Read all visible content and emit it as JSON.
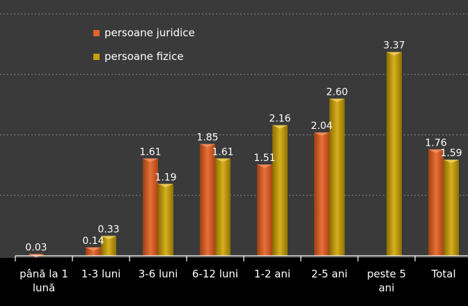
{
  "chart_data": {
    "type": "bar",
    "categories": [
      "până la 1 lună",
      "1-3 luni",
      "3-6 luni",
      "6-12 luni",
      "1-2 ani",
      "2-5 ani",
      "peste 5 ani",
      "Total"
    ],
    "tick_lines": [
      [
        "până la 1",
        "lună"
      ],
      [
        "1-3 luni"
      ],
      [
        "3-6 luni"
      ],
      [
        "6-12 luni"
      ],
      [
        "1-2 ani"
      ],
      [
        "2-5 ani"
      ],
      [
        "peste 5",
        "ani"
      ],
      [
        "Total"
      ]
    ],
    "series": [
      {
        "name": "persoane juridice",
        "color": "#e0662a",
        "values": [
          0.03,
          0.14,
          1.61,
          1.85,
          1.51,
          2.04,
          null,
          1.76
        ],
        "labels": [
          "0.03",
          "0.14",
          "1.61",
          "1.85",
          "1.51",
          "2.04",
          "",
          "1.76"
        ]
      },
      {
        "name": "persoane fizice",
        "color": "#c8a10a",
        "values": [
          null,
          0.33,
          1.19,
          1.61,
          2.16,
          2.6,
          3.37,
          1.59
        ],
        "labels": [
          "",
          "0.33",
          "1.19",
          "1.61",
          "2.16",
          "2.60",
          "3.37",
          "1.59"
        ]
      }
    ],
    "ylim": [
      0,
      4
    ],
    "grid": true,
    "legend": "top-left",
    "plot_background": "#3a3a3a",
    "page_background": "#000000"
  }
}
